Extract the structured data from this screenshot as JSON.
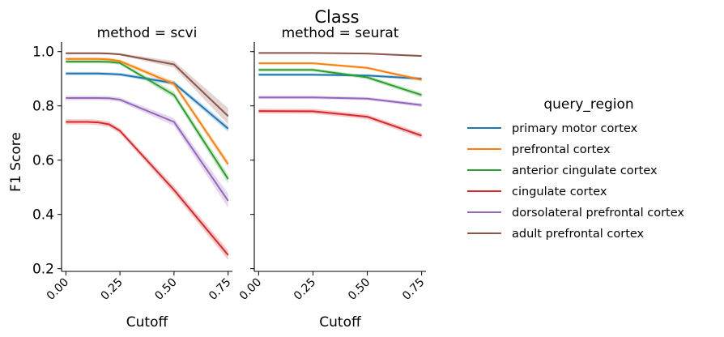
{
  "figure": {
    "suptitle": "Class",
    "ylabel": "F1 Score"
  },
  "chart_data": [
    {
      "type": "line",
      "title": "method = scvi",
      "xlabel": "Cutoff",
      "ylabel": "F1 Score",
      "x_ticks": [
        "0.00",
        "0.25",
        "0.50",
        "0.75"
      ],
      "y_ticks": [
        "0.2",
        "0.4",
        "0.6",
        "0.8",
        "1.0"
      ],
      "xlim": [
        -0.02,
        0.77
      ],
      "ylim": [
        0.19,
        1.035
      ],
      "x": [
        0.0,
        0.05,
        0.1,
        0.15,
        0.2,
        0.25,
        0.5,
        0.75
      ],
      "series": [
        {
          "name": "primary motor cortex",
          "color": "#1f77b4",
          "values": [
            0.919,
            0.919,
            0.919,
            0.919,
            0.918,
            0.916,
            0.884,
            0.716
          ],
          "band": [
            0.006,
            0.006,
            0.006,
            0.006,
            0.006,
            0.006,
            0.008,
            0.012
          ]
        },
        {
          "name": "prefrontal cortex",
          "color": "#ff7f0e",
          "values": [
            0.973,
            0.973,
            0.973,
            0.973,
            0.971,
            0.965,
            0.881,
            0.585
          ],
          "band": [
            0.006,
            0.006,
            0.006,
            0.006,
            0.006,
            0.006,
            0.01,
            0.012
          ]
        },
        {
          "name": "anterior cingulate cortex",
          "color": "#2ca02c",
          "values": [
            0.963,
            0.963,
            0.963,
            0.963,
            0.962,
            0.958,
            0.84,
            0.53
          ],
          "band": [
            0.006,
            0.006,
            0.006,
            0.006,
            0.006,
            0.006,
            0.012,
            0.016
          ]
        },
        {
          "name": "cingulate cortex",
          "color": "#d62728",
          "values": [
            0.741,
            0.741,
            0.741,
            0.739,
            0.732,
            0.708,
            0.49,
            0.25
          ],
          "band": [
            0.01,
            0.01,
            0.01,
            0.01,
            0.01,
            0.01,
            0.014,
            0.018
          ]
        },
        {
          "name": "dorsolateral prefrontal cortex",
          "color": "#9467bd",
          "values": [
            0.829,
            0.829,
            0.829,
            0.829,
            0.828,
            0.823,
            0.741,
            0.45
          ],
          "band": [
            0.008,
            0.008,
            0.008,
            0.008,
            0.008,
            0.008,
            0.014,
            0.026
          ]
        },
        {
          "name": "adult prefrontal cortex",
          "color": "#8c564b",
          "values": [
            0.994,
            0.994,
            0.994,
            0.994,
            0.993,
            0.99,
            0.953,
            0.762
          ],
          "band": [
            0.004,
            0.004,
            0.004,
            0.004,
            0.004,
            0.004,
            0.012,
            0.03
          ]
        }
      ]
    },
    {
      "type": "line",
      "title": "method = seurat",
      "xlabel": "Cutoff",
      "x_ticks": [
        "0.00",
        "0.25",
        "0.50",
        "0.75"
      ],
      "xlim": [
        -0.02,
        0.77
      ],
      "ylim": [
        0.19,
        1.035
      ],
      "x": [
        0.0,
        0.25,
        0.5,
        0.75
      ],
      "series": [
        {
          "name": "primary motor cortex",
          "color": "#1f77b4",
          "values": [
            0.915,
            0.915,
            0.912,
            0.9
          ],
          "band": [
            0.005,
            0.005,
            0.005,
            0.006
          ]
        },
        {
          "name": "prefrontal cortex",
          "color": "#ff7f0e",
          "values": [
            0.957,
            0.957,
            0.94,
            0.896
          ],
          "band": [
            0.004,
            0.004,
            0.005,
            0.006
          ]
        },
        {
          "name": "anterior cingulate cortex",
          "color": "#2ca02c",
          "values": [
            0.933,
            0.933,
            0.905,
            0.84
          ],
          "band": [
            0.006,
            0.006,
            0.007,
            0.009
          ]
        },
        {
          "name": "cingulate cortex",
          "color": "#d62728",
          "values": [
            0.781,
            0.78,
            0.76,
            0.69
          ],
          "band": [
            0.009,
            0.009,
            0.009,
            0.01
          ]
        },
        {
          "name": "dorsolateral prefrontal cortex",
          "color": "#9467bd",
          "values": [
            0.831,
            0.831,
            0.827,
            0.803
          ],
          "band": [
            0.006,
            0.006,
            0.006,
            0.007
          ]
        },
        {
          "name": "adult prefrontal cortex",
          "color": "#8c564b",
          "values": [
            0.995,
            0.995,
            0.993,
            0.984
          ],
          "band": [
            0.003,
            0.003,
            0.003,
            0.004
          ]
        }
      ]
    }
  ],
  "legend": {
    "title": "query_region",
    "placement": "right",
    "entries": [
      {
        "label": "primary motor cortex",
        "color": "#1f77b4"
      },
      {
        "label": "prefrontal cortex",
        "color": "#ff7f0e"
      },
      {
        "label": "anterior cingulate cortex",
        "color": "#2ca02c"
      },
      {
        "label": "cingulate cortex",
        "color": "#d62728"
      },
      {
        "label": "dorsolateral prefrontal cortex",
        "color": "#9467bd"
      },
      {
        "label": "adult prefrontal cortex",
        "color": "#8c564b"
      }
    ]
  }
}
